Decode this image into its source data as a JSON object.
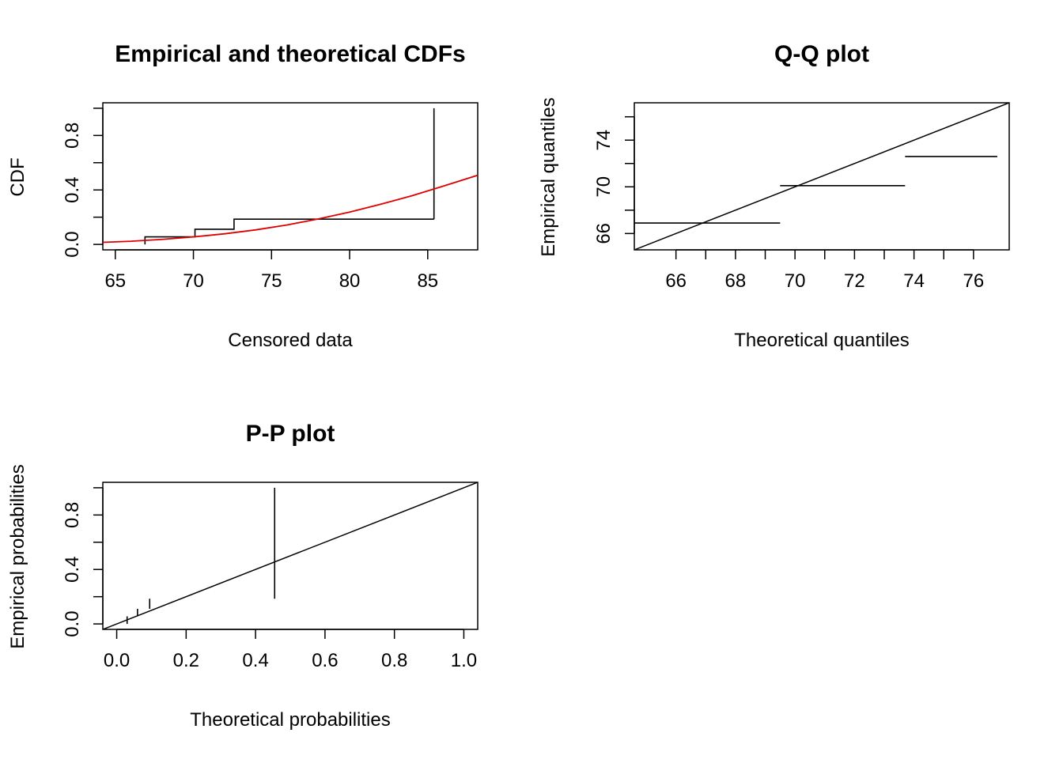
{
  "chart_data": [
    {
      "id": "cdf",
      "type": "line",
      "title": "Empirical and theoretical CDFs",
      "xlabel": "Censored data",
      "ylabel": "CDF",
      "xlim": [
        64.2,
        88.2
      ],
      "ylim": [
        -0.04,
        1.04
      ],
      "xticks": [
        65,
        70,
        75,
        80,
        85
      ],
      "xticklabels": [
        "65",
        "70",
        "75",
        "80",
        "85"
      ],
      "yticks": [
        0,
        0.2,
        0.4,
        0.6,
        0.8,
        1.0
      ],
      "yticklabels": [
        "0.0",
        "",
        "0.4",
        "",
        "0.8",
        ""
      ],
      "series": [
        {
          "kind": "empirical_step",
          "color": "#000000",
          "x": [
            66.9,
            70.1,
            72.6,
            85.4
          ],
          "y": [
            0.0,
            0.0556,
            0.1111,
            0.1852
          ],
          "final_interval": [
            0.1852,
            1.0
          ]
        },
        {
          "kind": "theoretical_curve",
          "color": "#DD0000",
          "x": [
            64.2,
            66,
            68,
            70,
            72,
            74,
            76,
            78,
            80,
            82,
            84,
            86,
            88.2
          ],
          "y": [
            0.015,
            0.023,
            0.037,
            0.055,
            0.078,
            0.107,
            0.143,
            0.187,
            0.237,
            0.295,
            0.358,
            0.428,
            0.508
          ]
        }
      ],
      "grid": false,
      "legend": null
    },
    {
      "id": "qq",
      "type": "line",
      "title": "Q-Q plot",
      "xlabel": "Theoretical quantiles",
      "ylabel": "Empirical quantiles",
      "xlim": [
        64.6,
        77.2
      ],
      "ylim": [
        64.6,
        77.2
      ],
      "xticks": [
        66,
        67,
        68,
        69,
        70,
        71,
        72,
        73,
        74,
        75,
        76
      ],
      "xticklabels": [
        "66",
        "",
        "68",
        "",
        "70",
        "",
        "72",
        "",
        "74",
        "",
        "76"
      ],
      "yticks": [
        66,
        68,
        70,
        72,
        74,
        76
      ],
      "yticklabels": [
        "66",
        "",
        "70",
        "",
        "74",
        ""
      ],
      "segments": [
        {
          "x1": 64.6,
          "x2": 69.5,
          "y": 66.9
        },
        {
          "x1": 69.5,
          "x2": 73.7,
          "y": 70.1
        },
        {
          "x1": 73.7,
          "x2": 76.8,
          "y": 72.6
        }
      ],
      "reference_line": "y = x",
      "grid": false,
      "legend": null
    },
    {
      "id": "pp",
      "type": "line",
      "title": "P-P plot",
      "xlabel": "Theoretical probabilities",
      "ylabel": "Empirical probabilities",
      "xlim": [
        -0.04,
        1.04
      ],
      "ylim": [
        -0.04,
        1.04
      ],
      "xticks": [
        0,
        0.2,
        0.4,
        0.6,
        0.8,
        1.0
      ],
      "xticklabels": [
        "0.0",
        "0.2",
        "0.4",
        "0.6",
        "0.8",
        "1.0"
      ],
      "yticks": [
        0,
        0.2,
        0.4,
        0.6,
        0.8,
        1.0
      ],
      "yticklabels": [
        "0.0",
        "",
        "0.4",
        "",
        "0.8",
        ""
      ],
      "segments": [
        {
          "x": 0.03,
          "y1": 0.0,
          "y2": 0.0556
        },
        {
          "x": 0.06,
          "y1": 0.0556,
          "y2": 0.1111
        },
        {
          "x": 0.095,
          "y1": 0.1111,
          "y2": 0.1852
        },
        {
          "x": 0.455,
          "y1": 0.1852,
          "y2": 1.0
        }
      ],
      "reference_line": "y = x",
      "grid": false,
      "legend": null
    }
  ]
}
